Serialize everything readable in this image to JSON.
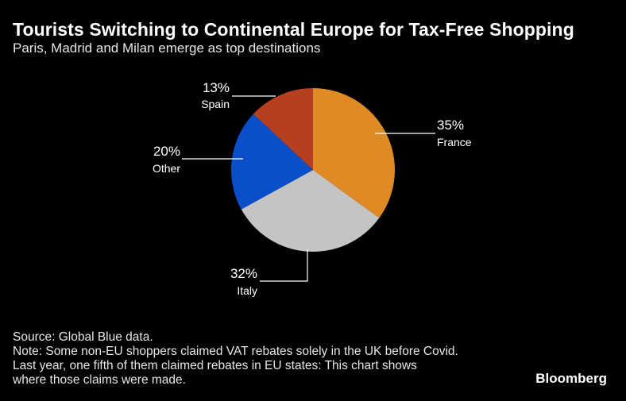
{
  "header": {
    "title": "Tourists Switching to Continental Europe for Tax-Free Shopping",
    "subtitle": "Paris, Madrid and Milan emerge as top destinations"
  },
  "footer": {
    "source": "Source: Global Blue data.",
    "note_line1": "Note: Some non-EU shoppers claimed VAT rebates solely in the UK before Covid.",
    "note_line2": "Last year, one fifth of them claimed rebates in EU states: This chart shows",
    "note_line3": "where those claims were made.",
    "brand": "Bloomberg"
  },
  "chart_data": {
    "type": "pie",
    "title": "Tourists Switching to Continental Europe for Tax-Free Shopping",
    "subtitle": "Paris, Madrid and Milan emerge as top destinations",
    "slices": [
      {
        "label": "France",
        "value": 35,
        "value_label": "35%",
        "color": "#e08a26"
      },
      {
        "label": "Italy",
        "value": 32,
        "value_label": "32%",
        "color": "#c4c4c4"
      },
      {
        "label": "Other",
        "value": 20,
        "value_label": "20%",
        "color": "#0a4fc9"
      },
      {
        "label": "Spain",
        "value": 13,
        "value_label": "13%",
        "color": "#b53f1e"
      }
    ],
    "start_angle_deg": 0,
    "direction": "clockwise"
  }
}
